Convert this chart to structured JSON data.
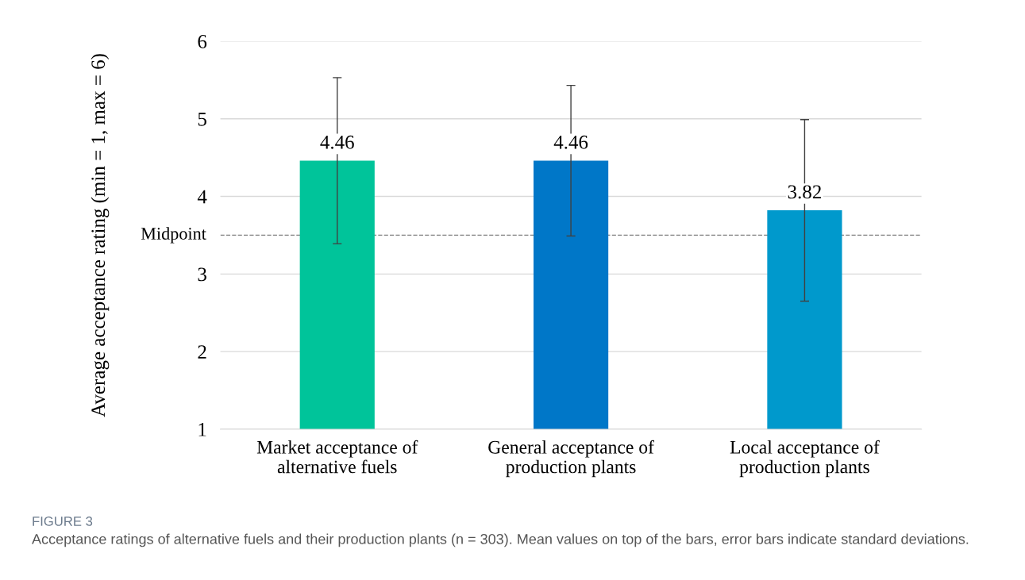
{
  "chart_data": {
    "type": "bar",
    "ylabel": "Average acceptance rating (min = 1, max = 6)",
    "categories": [
      "Market acceptance of\nalternative fuels",
      "General acceptance of\nproduction plants",
      "Local acceptance of\nproduction plants"
    ],
    "values": [
      4.46,
      4.46,
      3.82
    ],
    "colors": [
      "#00c49a",
      "#0077c8",
      "#0099cc"
    ],
    "errors": [
      1.07,
      0.97,
      1.17
    ],
    "data_labels": true,
    "ylim": [
      1,
      6
    ],
    "yticks": [
      1,
      2,
      3,
      4,
      5,
      6
    ],
    "grid": "y",
    "ref_lines": [
      {
        "axis": "y",
        "value": 3.5,
        "label": "Midpoint",
        "color": "#808080",
        "line_style": "dashed"
      }
    ],
    "annotations": [
      "FIGURE 3",
      "Acceptance ratings of alternative fuels and their production plants (n = 303). Mean values on top of the bars, error bars indicate standard deviations."
    ]
  }
}
